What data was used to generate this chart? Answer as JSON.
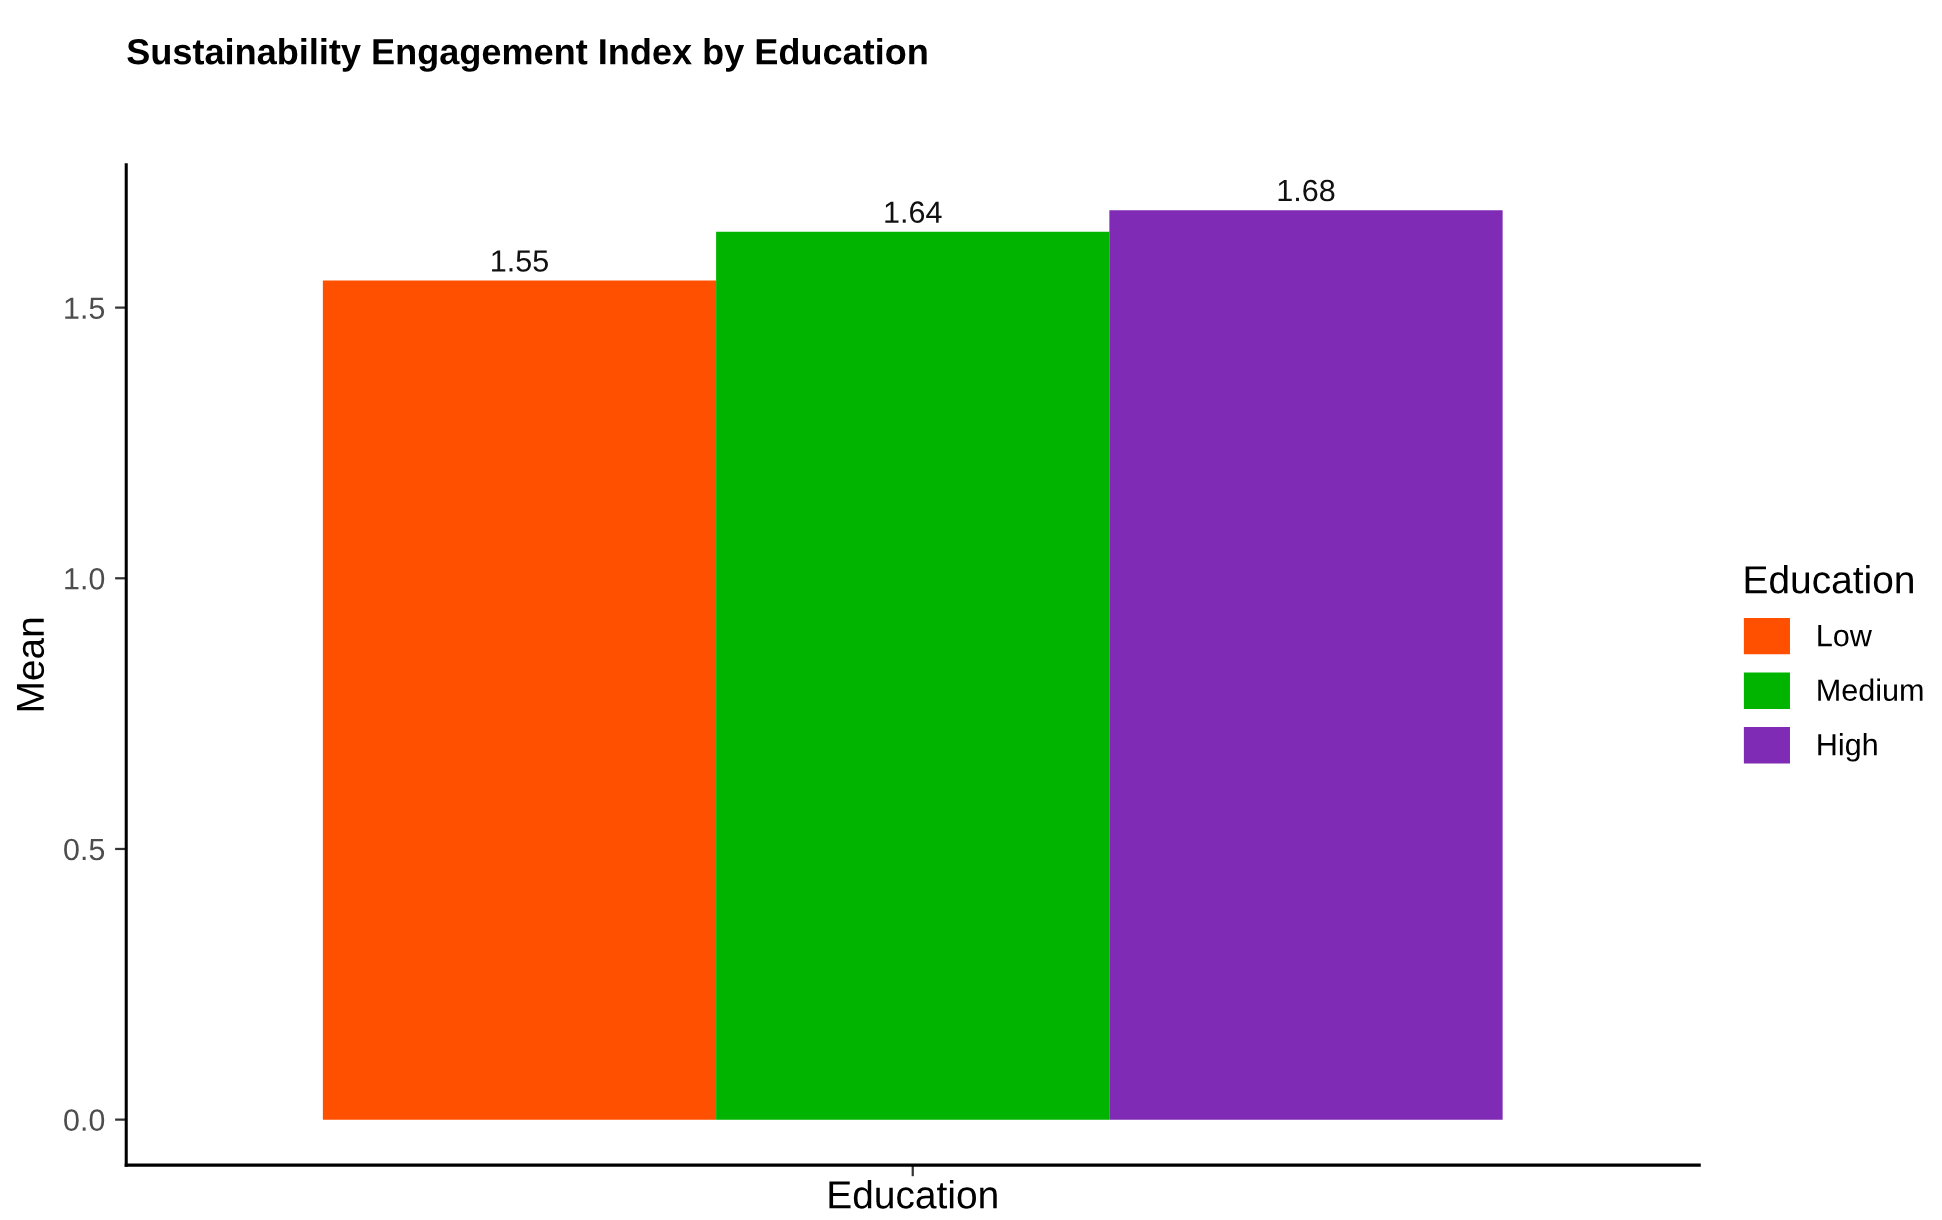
{
  "chart_data": {
    "type": "bar",
    "title": "Sustainability Engagement Index by Education",
    "xlabel": "Education",
    "ylabel": "Mean",
    "legend_title": "Education",
    "categories": [
      null
    ],
    "series": [
      {
        "name": "Low",
        "color": "#ff5000",
        "values": [
          1.55
        ]
      },
      {
        "name": "Medium",
        "color": "#00b400",
        "values": [
          1.64
        ]
      },
      {
        "name": "High",
        "color": "#7f2bb5",
        "values": [
          1.68
        ]
      }
    ],
    "ylim": [
      -0.084,
      1.764
    ],
    "yticks": [
      {
        "value": 0,
        "label": "0.0"
      },
      {
        "value": 0.5,
        "label": "0.5"
      },
      {
        "value": 1,
        "label": "1.0"
      },
      {
        "value": 1.5,
        "label": "1.5"
      }
    ],
    "data_labels": true,
    "grid": false,
    "legend": "right"
  }
}
